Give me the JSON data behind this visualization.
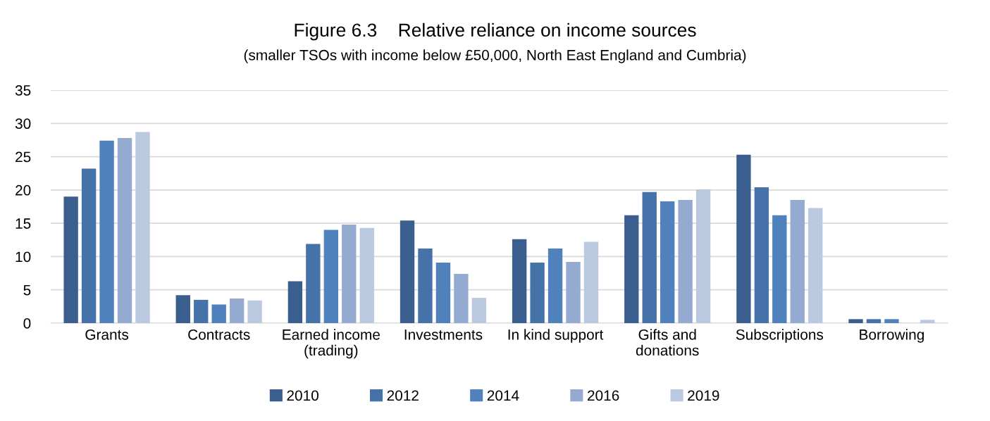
{
  "chart_data": {
    "type": "bar",
    "title": "Figure 6.3    Relative reliance on income sources",
    "subtitle": "(smaller TSOs with income below £50,000, North East England and Cumbria)",
    "categories": [
      "Grants",
      "Contracts",
      "Earned income\n(trading)",
      "Investments",
      "In kind support",
      "Gifts and\ndonations",
      "Subscriptions",
      "Borrowing"
    ],
    "series": [
      {
        "name": "2010",
        "color": "#3a5f8e",
        "values": [
          19.0,
          4.2,
          6.3,
          15.4,
          12.6,
          16.2,
          25.3,
          0.6
        ]
      },
      {
        "name": "2012",
        "color": "#4572a8",
        "values": [
          23.2,
          3.5,
          11.9,
          11.2,
          9.1,
          19.7,
          20.4,
          0.6
        ]
      },
      {
        "name": "2014",
        "color": "#4f81bd",
        "values": [
          27.4,
          2.8,
          14.0,
          9.1,
          11.2,
          18.3,
          16.2,
          0.6
        ]
      },
      {
        "name": "2016",
        "color": "#95aad0",
        "values": [
          27.8,
          3.7,
          14.8,
          7.4,
          9.2,
          18.5,
          18.5,
          0
        ]
      },
      {
        "name": "2019",
        "color": "#bac8e0",
        "values": [
          28.7,
          3.4,
          14.3,
          3.8,
          12.2,
          20.1,
          17.3,
          0.5
        ]
      }
    ],
    "ylim": [
      0,
      35
    ],
    "yticks": [
      0,
      5,
      10,
      15,
      20,
      25,
      30,
      35
    ],
    "grid": "y",
    "legend": "bottom"
  }
}
